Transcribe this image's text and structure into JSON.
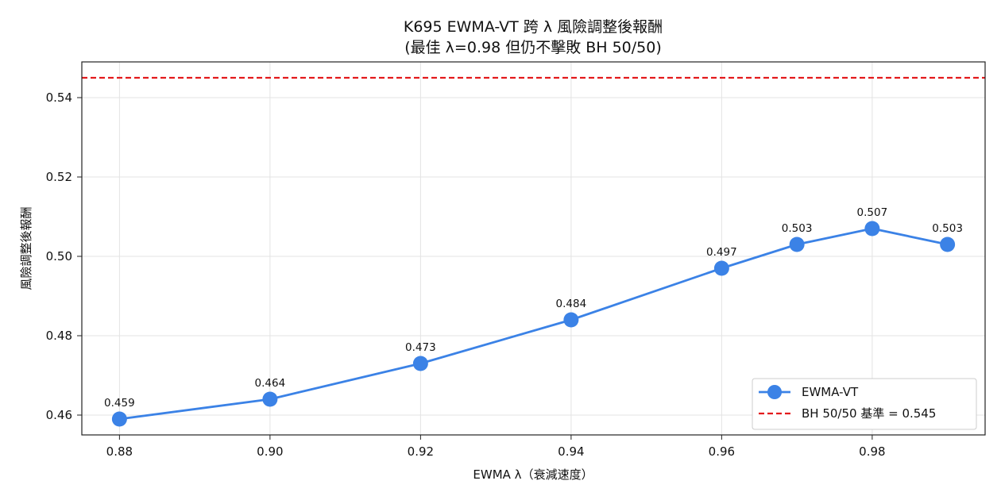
{
  "chart_data": {
    "type": "line",
    "title": "K695 EWMA-VT 跨 λ 風險調整後報酬",
    "subtitle": "(最佳 λ=0.98 但仍不擊敗 BH 50/50)",
    "xlabel": "EWMA λ（衰減速度）",
    "ylabel": "風險調整後報酬",
    "xlim": [
      0.875,
      0.995
    ],
    "ylim": [
      0.455,
      0.549
    ],
    "xticks": [
      0.88,
      0.9,
      0.92,
      0.94,
      0.96,
      0.98
    ],
    "xtick_labels": [
      "0.88",
      "0.90",
      "0.92",
      "0.94",
      "0.96",
      "0.98"
    ],
    "yticks": [
      0.46,
      0.48,
      0.5,
      0.52,
      0.54
    ],
    "ytick_labels": [
      "0.46",
      "0.48",
      "0.50",
      "0.52",
      "0.54"
    ],
    "grid": true,
    "legend_position": "lower-right",
    "series": [
      {
        "name": "EWMA-VT",
        "color": "#3b82e6",
        "x": [
          0.88,
          0.9,
          0.92,
          0.94,
          0.96,
          0.97,
          0.98,
          0.99
        ],
        "values": [
          0.459,
          0.464,
          0.473,
          0.484,
          0.497,
          0.503,
          0.507,
          0.503
        ],
        "labels": [
          "0.459",
          "0.464",
          "0.473",
          "0.484",
          "0.497",
          "0.503",
          "0.507",
          "0.503"
        ]
      }
    ],
    "reference_line": {
      "name": "BH 50/50 基準 = 0.545",
      "value": 0.545,
      "color": "#e31a1c",
      "style": "dashed"
    }
  }
}
